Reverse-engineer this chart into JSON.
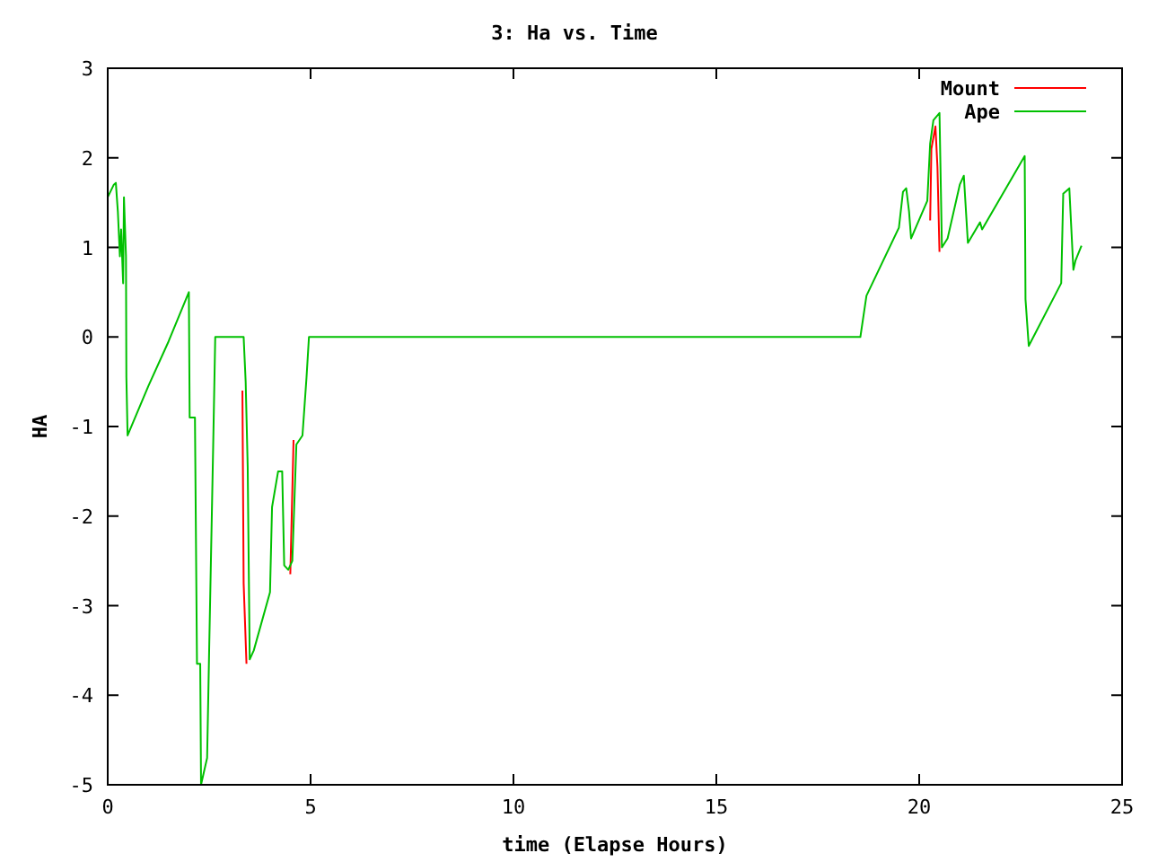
{
  "chart_data": {
    "type": "line",
    "title": "3: Ha vs. Time",
    "xlabel": "time (Elapse Hours)",
    "ylabel": "HA",
    "xlim": [
      0,
      25
    ],
    "xticks": [
      0,
      5,
      10,
      15,
      20,
      25
    ],
    "ylim": [
      -5,
      3
    ],
    "yticks": [
      -5,
      -4,
      -3,
      -2,
      -1,
      0,
      1,
      2,
      3
    ],
    "grid": false,
    "legend": "top right",
    "line_style": "solid",
    "series": [
      {
        "name": "Mount",
        "color": "#ff0000",
        "x": [
          3.32,
          3.35,
          3.42,
          4.0,
          4.5,
          4.58,
          19.0,
          20.27,
          20.3,
          20.4,
          20.45,
          20.5
        ],
        "values": [
          -0.6,
          -2.75,
          -3.65,
          null,
          -2.65,
          -1.15,
          null,
          1.3,
          2.1,
          2.35,
          1.9,
          0.95
        ]
      },
      {
        "name": "Ape",
        "color": "#00c000",
        "x": [
          0,
          0.15,
          0.2,
          0.25,
          0.3,
          0.33,
          0.38,
          0.4,
          0.45,
          0.46,
          0.49,
          1.0,
          1.5,
          2.0,
          2.02,
          2.15,
          2.2,
          2.28,
          2.3,
          2.4,
          2.45,
          2.5,
          2.6,
          2.65,
          3.35,
          3.4,
          3.45,
          3.5,
          3.6,
          4.0,
          4.05,
          4.2,
          4.3,
          4.35,
          4.45,
          4.55,
          4.65,
          4.8,
          4.9,
          4.96,
          18.55,
          18.7,
          19.5,
          19.6,
          19.68,
          19.75,
          19.8,
          20.2,
          20.27,
          20.35,
          20.5,
          20.56,
          20.7,
          21.0,
          21.1,
          21.2,
          21.5,
          21.55,
          22.6,
          22.62,
          22.7,
          23.5,
          23.55,
          23.7,
          23.8,
          23.85,
          24.0
        ],
        "values": [
          1.56,
          1.7,
          1.72,
          1.4,
          0.9,
          1.2,
          0.6,
          1.56,
          0.9,
          -0.45,
          -1.1,
          -0.55,
          -0.05,
          0.5,
          -0.9,
          -0.9,
          -3.65,
          -3.65,
          -5,
          -4.8,
          -4.7,
          -3.5,
          -1.2,
          0,
          0,
          -0.5,
          -1.45,
          -3.6,
          -3.5,
          -2.85,
          -1.9,
          -1.5,
          -1.5,
          -2.55,
          -2.6,
          -2.5,
          -1.2,
          -1.1,
          -0.45,
          0,
          0,
          0.46,
          1.22,
          1.62,
          1.66,
          1.4,
          1.1,
          1.52,
          2.16,
          2.42,
          2.5,
          1.0,
          1.1,
          1.7,
          1.8,
          1.05,
          1.28,
          1.2,
          2.02,
          0.42,
          -0.1,
          0.6,
          1.6,
          1.66,
          0.75,
          0.85,
          1.02
        ]
      }
    ]
  }
}
